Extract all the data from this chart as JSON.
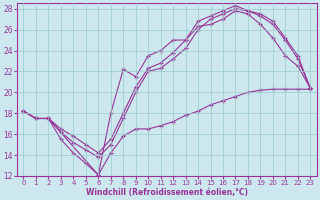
{
  "xlabel": "Windchill (Refroidissement éolien,°C)",
  "bg_color": "#cce8ee",
  "line_color": "#993399",
  "grid_color": "#99cccc",
  "xlim": [
    -0.5,
    23.5
  ],
  "ylim": [
    12,
    28.5
  ],
  "xticks": [
    0,
    1,
    2,
    3,
    4,
    5,
    6,
    7,
    8,
    9,
    10,
    11,
    12,
    13,
    14,
    15,
    16,
    17,
    18,
    19,
    20,
    21,
    22,
    23
  ],
  "yticks": [
    12,
    14,
    16,
    18,
    20,
    22,
    24,
    26,
    28
  ],
  "series": [
    {
      "x": [
        0,
        1,
        2,
        6,
        7,
        8,
        9,
        10,
        11,
        12,
        13,
        14,
        15,
        16,
        17,
        18,
        19,
        20,
        21,
        22,
        23
      ],
      "y": [
        18.2,
        17.5,
        17.5,
        12.1,
        14.2,
        15.8,
        16.5,
        16.5,
        16.8,
        17.2,
        17.8,
        18.2,
        18.8,
        19.2,
        19.6,
        20.0,
        20.2,
        20.3,
        20.3,
        20.3,
        20.3
      ]
    },
    {
      "x": [
        0,
        1,
        2,
        3,
        4,
        5,
        6,
        7,
        8,
        9,
        10,
        11,
        12,
        13,
        14,
        15,
        16,
        17,
        18,
        19,
        20,
        21,
        22,
        23
      ],
      "y": [
        18.2,
        17.5,
        17.5,
        15.5,
        14.2,
        13.2,
        12.1,
        18.0,
        22.2,
        21.5,
        23.5,
        24.0,
        25.0,
        25.0,
        26.3,
        26.5,
        27.0,
        27.8,
        27.5,
        26.5,
        25.2,
        23.5,
        22.5,
        20.4
      ]
    },
    {
      "x": [
        0,
        1,
        2,
        3,
        4,
        5,
        6,
        7,
        8,
        9,
        10,
        11,
        12,
        13,
        14,
        15,
        16,
        17,
        18,
        19,
        20,
        21,
        22,
        23
      ],
      "y": [
        18.2,
        17.5,
        17.5,
        16.2,
        15.2,
        14.5,
        13.8,
        15.0,
        17.5,
        20.0,
        22.0,
        22.3,
        23.2,
        24.2,
        26.0,
        27.0,
        27.5,
        28.0,
        27.8,
        27.3,
        26.5,
        25.0,
        23.2,
        20.4
      ]
    },
    {
      "x": [
        0,
        1,
        2,
        3,
        4,
        5,
        6,
        7,
        8,
        9,
        10,
        11,
        12,
        13,
        14,
        15,
        16,
        17,
        18,
        19,
        20,
        21,
        22,
        23
      ],
      "y": [
        18.2,
        17.5,
        17.5,
        16.5,
        15.8,
        15.0,
        14.2,
        15.5,
        18.0,
        20.5,
        22.3,
        22.8,
        23.8,
        25.0,
        26.8,
        27.3,
        27.8,
        28.3,
        27.8,
        27.5,
        26.8,
        25.2,
        23.5,
        20.4
      ]
    }
  ]
}
